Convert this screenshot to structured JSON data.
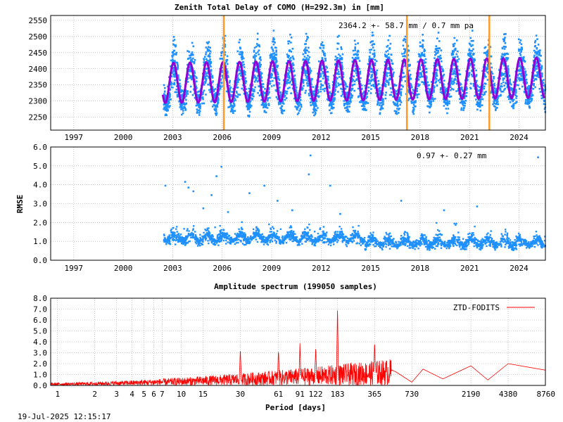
{
  "timestamp": "19-Jul-2025 12:15:17",
  "chart_data": [
    {
      "type": "scatter",
      "title": "Zenith Total Delay of COMO (H=292.3m) in [mm]",
      "annotation": "2364.2 +-  58.7 mm /  0.7 mm pa",
      "x_ticks": [
        "1997",
        "2000",
        "2003",
        "2006",
        "2009",
        "2012",
        "2015",
        "2018",
        "2021",
        "2024"
      ],
      "y_ticks": [
        "2250",
        "2300",
        "2350",
        "2400",
        "2450",
        "2500",
        "2550"
      ],
      "xlim": [
        1995.6,
        2025.6
      ],
      "ylim": [
        2210,
        2565
      ],
      "data_start": 2002.4,
      "data_end": 2025.55,
      "mean": 2364.2,
      "seasonal_amplitude": 58.7,
      "trend_mm_per_year": 0.7,
      "model_amplitude": 62,
      "scatter_halfwidth": 105,
      "event_lines_x": [
        2006.1,
        2017.2,
        2022.2
      ],
      "colors": {
        "points": "#1e90ff",
        "model": "#9400d3",
        "events": "#ff9a2a"
      },
      "grid": true
    },
    {
      "type": "scatter",
      "ylabel": "RMSE",
      "annotation": "0.97 +-  0.27 mm",
      "x_ticks": [
        "1997",
        "2000",
        "2003",
        "2006",
        "2009",
        "2012",
        "2015",
        "2018",
        "2021",
        "2024"
      ],
      "y_ticks": [
        "0.0",
        "1.0",
        "2.0",
        "3.0",
        "4.0",
        "5.0",
        "6.0"
      ],
      "xlim": [
        1995.6,
        2025.6
      ],
      "ylim": [
        0,
        6
      ],
      "data_start": 2002.4,
      "data_end": 2025.55,
      "mean": 0.97,
      "std": 0.27,
      "outliers": [
        {
          "x": 2002.5,
          "y": 4.0
        },
        {
          "x": 2003.7,
          "y": 4.2
        },
        {
          "x": 2003.9,
          "y": 3.9
        },
        {
          "x": 2004.2,
          "y": 3.7
        },
        {
          "x": 2005.3,
          "y": 3.5
        },
        {
          "x": 2005.6,
          "y": 4.5
        },
        {
          "x": 2005.9,
          "y": 5.0
        },
        {
          "x": 2007.6,
          "y": 3.6
        },
        {
          "x": 2008.5,
          "y": 4.0
        },
        {
          "x": 2009.3,
          "y": 3.2
        },
        {
          "x": 2011.2,
          "y": 4.6
        },
        {
          "x": 2011.3,
          "y": 5.6
        },
        {
          "x": 2012.5,
          "y": 4.0
        },
        {
          "x": 2016.8,
          "y": 3.2
        },
        {
          "x": 2021.4,
          "y": 2.9
        },
        {
          "x": 2025.1,
          "y": 5.5
        },
        {
          "x": 2004.8,
          "y": 2.8
        },
        {
          "x": 2006.3,
          "y": 2.6
        },
        {
          "x": 2010.2,
          "y": 2.7
        },
        {
          "x": 2013.1,
          "y": 2.5
        },
        {
          "x": 2019.4,
          "y": 2.7
        }
      ],
      "colors": {
        "points": "#1e90ff"
      },
      "grid": true
    },
    {
      "type": "line",
      "title": "Amplitude spectrum (199050 samples)",
      "xlabel": "Period [days]",
      "x_scale": "log",
      "x_ticks": [
        1,
        2,
        3,
        4,
        5,
        6,
        7,
        10,
        15,
        30,
        61,
        91,
        122,
        183,
        365,
        730,
        2190,
        4380,
        8760
      ],
      "y_ticks": [
        "0.0",
        "1.0",
        "2.0",
        "3.0",
        "4.0",
        "5.0",
        "6.0",
        "7.0",
        "8.0"
      ],
      "xlim": [
        0.88,
        8760
      ],
      "ylim": [
        0,
        8
      ],
      "series": [
        {
          "name": "ZTD-FODITS",
          "color": "#ff0000"
        }
      ],
      "peaks": [
        {
          "x": 183,
          "y": 7.0
        },
        {
          "x": 365,
          "y": 3.8
        },
        {
          "x": 122,
          "y": 3.3
        },
        {
          "x": 91,
          "y": 3.6
        },
        {
          "x": 61,
          "y": 3.0
        },
        {
          "x": 30,
          "y": 3.1
        }
      ],
      "tail": [
        {
          "x": 550,
          "y": 1.2
        },
        {
          "x": 730,
          "y": 0.3
        },
        {
          "x": 900,
          "y": 1.5
        },
        {
          "x": 1300,
          "y": 0.6
        },
        {
          "x": 2190,
          "y": 1.8
        },
        {
          "x": 3000,
          "y": 0.5
        },
        {
          "x": 4380,
          "y": 2.0
        },
        {
          "x": 8760,
          "y": 1.4
        }
      ],
      "legend_position": "top-right",
      "grid": true
    }
  ]
}
